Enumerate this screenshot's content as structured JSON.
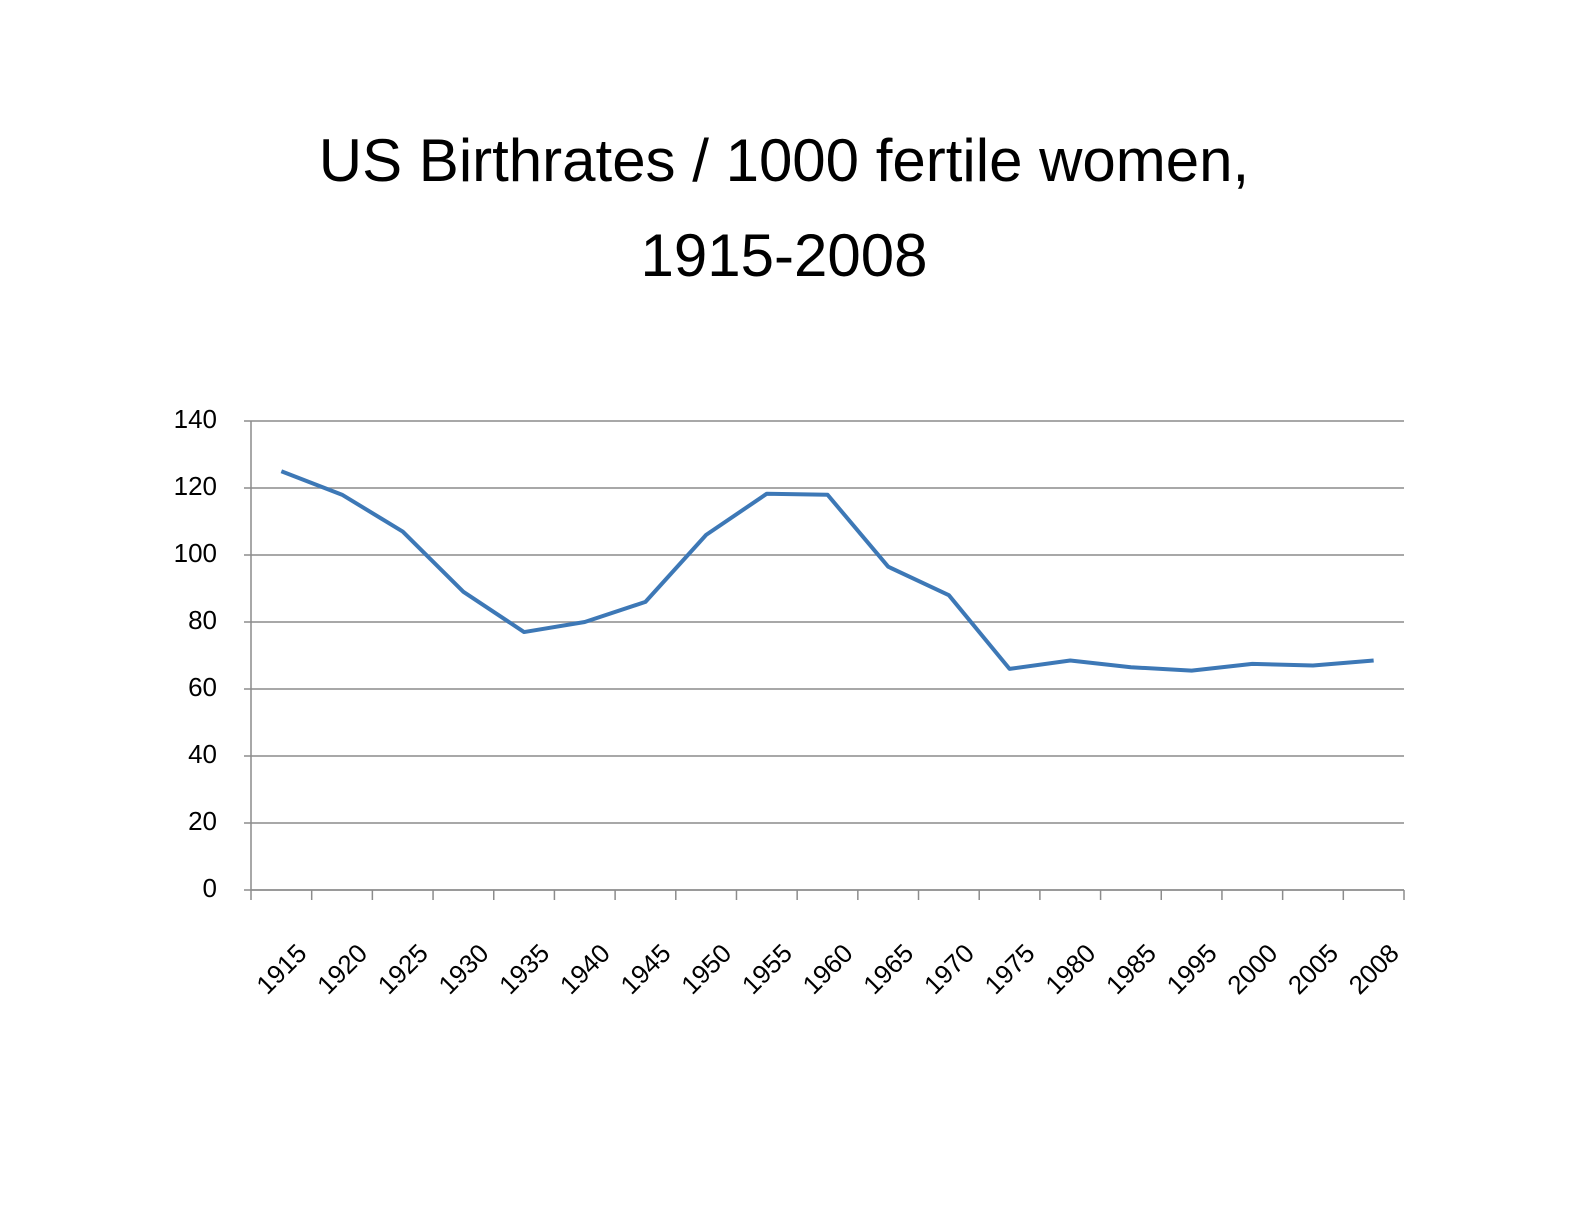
{
  "chart_data": {
    "type": "line",
    "title": [
      "US Birthrates / 1000 fertile women,",
      "1915-2008"
    ],
    "categories": [
      "1915",
      "1920",
      "1925",
      "1930",
      "1935",
      "1940",
      "1945",
      "1950",
      "1955",
      "1960",
      "1965",
      "1970",
      "1975",
      "1980",
      "1985",
      "1995",
      "2000",
      "2005",
      "2008"
    ],
    "values": [
      125,
      118,
      107,
      89,
      77,
      80,
      86,
      106,
      118.3,
      118,
      96.5,
      88,
      66,
      68.5,
      66.5,
      65.5,
      67.5,
      67,
      68.5
    ],
    "color": "#3d78b6",
    "ylim": [
      0,
      140
    ],
    "yticks": [
      0,
      20,
      40,
      60,
      80,
      100,
      120,
      140
    ],
    "grid": true
  }
}
